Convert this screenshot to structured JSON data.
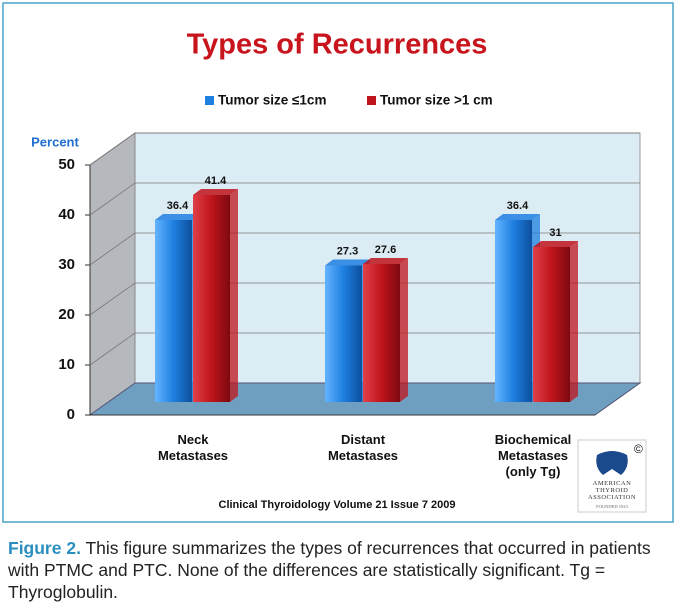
{
  "chart_data": {
    "type": "bar",
    "title": "Types of Recurrences",
    "y_label": "Percent",
    "categories": [
      "Neck\nMetastases",
      "Distant\nMetastases",
      "Biochemical\nMetastases\n(only Tg)"
    ],
    "series": [
      {
        "name": "Tumor size ≤1cm",
        "color": "#1e7fe0",
        "values": [
          36.4,
          27.3,
          36.4
        ]
      },
      {
        "name": "Tumor size >1 cm",
        "color": "#c0141c",
        "values": [
          41.4,
          27.6,
          31
        ]
      }
    ],
    "ylim": [
      0,
      50
    ],
    "yticks": [
      0,
      10,
      20,
      30,
      40,
      50
    ],
    "grid": true,
    "source": "Clinical Thyroidology Volume 21 Issue 7 2009"
  },
  "logo": {
    "mark": "©",
    "name": "AMERICAN\nTHYROID\nASSOCIATION",
    "founded": "FOUNDED 1923"
  },
  "caption": {
    "label": "Figure 2.",
    "text": "This figure summarizes the types of recurrences that occurred in patients with PTMC and PTC. None of the differences are statistically significant. Tg = Thyroglobulin."
  }
}
